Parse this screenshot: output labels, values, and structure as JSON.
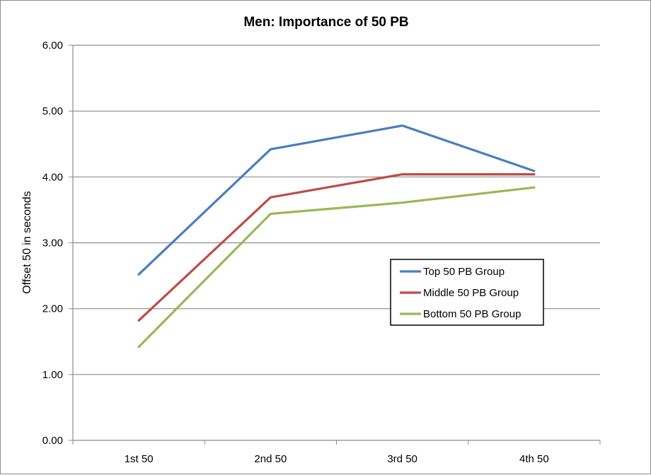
{
  "chart_data": {
    "type": "line",
    "title": "Men: Importance of 50 PB",
    "xlabel": "",
    "ylabel": "Offset 50 in seconds",
    "categories": [
      "1st 50",
      "2nd 50",
      "3rd 50",
      "4th 50"
    ],
    "ylim": [
      0,
      6
    ],
    "y_ticks": [
      "0.00",
      "1.00",
      "2.00",
      "3.00",
      "4.00",
      "5.00",
      "6.00"
    ],
    "grid": "horizontal",
    "legend_position": "right-center",
    "series": [
      {
        "name": "Top 50 PB Group",
        "color": "#4a7ebb",
        "values": [
          2.52,
          4.42,
          4.78,
          4.09
        ]
      },
      {
        "name": "Middle 50 PB Group",
        "color": "#be4b48",
        "values": [
          1.82,
          3.69,
          4.04,
          4.04
        ]
      },
      {
        "name": "Bottom 50 PB Group",
        "color": "#98b954",
        "values": [
          1.42,
          3.44,
          3.61,
          3.84
        ]
      }
    ]
  }
}
